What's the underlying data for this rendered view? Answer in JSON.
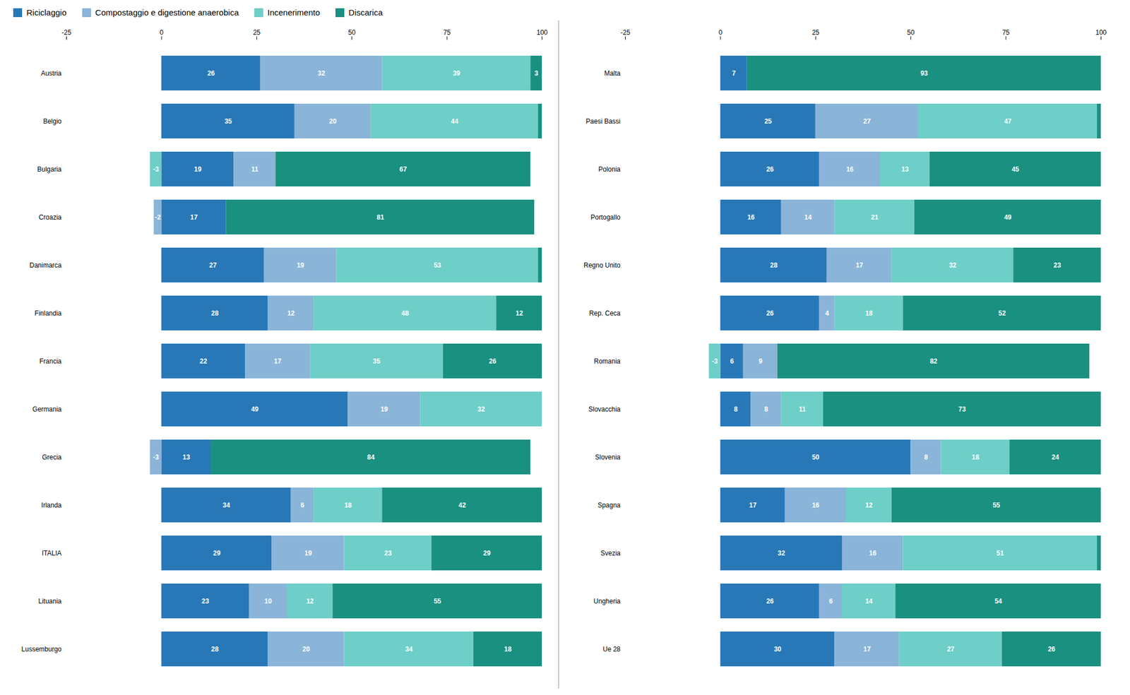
{
  "chart_data": [
    {
      "type": "bar",
      "orientation": "horizontal",
      "stacked": true,
      "data_labels": true,
      "grid": false,
      "legend": "top",
      "categories": [
        "Austria",
        "Belgio",
        "Bulgaria",
        "Croazia",
        "Danimarca",
        "Finlandia",
        "Francia",
        "Germania",
        "Grecia",
        "Irlanda",
        "ITALIA",
        "Lituania",
        "Lussemburgo"
      ],
      "series": [
        {
          "name": "Riciclaggio",
          "color": "#2878b8",
          "values": [
            26,
            35,
            19,
            17,
            27,
            28,
            22,
            49,
            13,
            34,
            29,
            23,
            28
          ]
        },
        {
          "name": "Compostaggio e digestione anaerobica",
          "color": "#8ab4d8",
          "values": [
            32,
            20,
            11,
            -2,
            19,
            12,
            17,
            19,
            -3,
            6,
            19,
            10,
            20
          ]
        },
        {
          "name": "Incenerimento",
          "color": "#6ecec8",
          "values": [
            39,
            44,
            -3,
            0,
            53,
            48,
            35,
            32,
            0,
            18,
            23,
            12,
            34
          ]
        },
        {
          "name": "Discarica",
          "color": "#1a9080",
          "values": [
            3,
            1,
            67,
            81,
            1,
            12,
            26,
            0,
            84,
            42,
            29,
            55,
            18
          ]
        }
      ],
      "xlim": [
        -25,
        100
      ],
      "xticks": [
        -25,
        0,
        25,
        50,
        75,
        100
      ]
    },
    {
      "type": "bar",
      "orientation": "horizontal",
      "stacked": true,
      "data_labels": true,
      "grid": false,
      "legend": "top",
      "categories": [
        "Malta",
        "Paesi Bassi",
        "Polonia",
        "Portogallo",
        "Regno Unito",
        "Rep. Ceca",
        "Romania",
        "Slovacchia",
        "Slovenia",
        "Spagna",
        "Svezia",
        "Ungheria",
        "Ue 28"
      ],
      "series": [
        {
          "name": "Riciclaggio",
          "color": "#2878b8",
          "values": [
            7,
            25,
            26,
            16,
            28,
            26,
            6,
            8,
            50,
            17,
            32,
            26,
            30
          ]
        },
        {
          "name": "Compostaggio e digestione anaerobica",
          "color": "#8ab4d8",
          "values": [
            0,
            27,
            16,
            14,
            17,
            4,
            9,
            8,
            8,
            16,
            16,
            6,
            17
          ]
        },
        {
          "name": "Incenerimento",
          "color": "#6ecec8",
          "values": [
            0,
            47,
            13,
            21,
            32,
            18,
            -3,
            11,
            18,
            12,
            51,
            14,
            27
          ]
        },
        {
          "name": "Discarica",
          "color": "#1a9080",
          "values": [
            93,
            1,
            45,
            49,
            23,
            52,
            82,
            73,
            24,
            55,
            1,
            54,
            26
          ]
        }
      ],
      "xlim": [
        -25,
        100
      ],
      "xticks": [
        -25,
        0,
        25,
        50,
        75,
        100
      ]
    }
  ]
}
